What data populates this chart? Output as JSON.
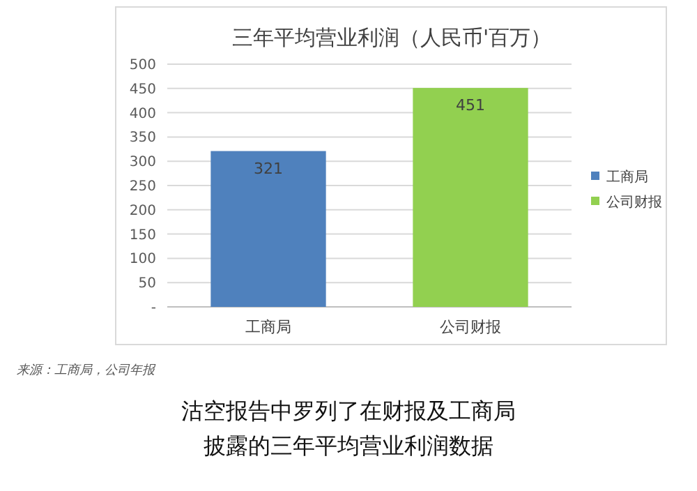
{
  "chart_data": {
    "type": "bar",
    "title": "三年平均营业利润（人民币'百万）",
    "categories": [
      "工商局",
      "公司财报"
    ],
    "stacked": true,
    "series": [
      {
        "name": "工商局",
        "color": "#4f81bd",
        "values": [
          321,
          null
        ]
      },
      {
        "name": "公司财报",
        "color": "#92d050",
        "values": [
          null,
          451
        ]
      }
    ],
    "ylim": [
      0,
      500
    ],
    "yticks": [
      {
        "value": 0,
        "label": "-"
      },
      50,
      100,
      150,
      200,
      250,
      300,
      350,
      400,
      450,
      500
    ],
    "grid": "y",
    "legend": "right",
    "data_labels": true,
    "annotations": [
      "来源：工商局，公司年报",
      "沽空报告中罗列了在财报及工商局披露的三年平均营业利润数据"
    ]
  }
}
